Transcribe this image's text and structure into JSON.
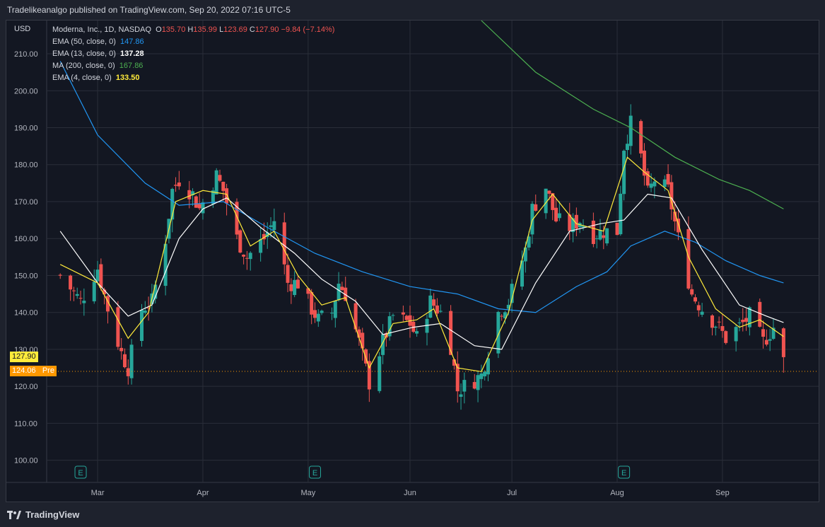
{
  "header": {
    "published_by": "Tradelikeanalgo published on TradingView.com, Sep 20, 2022 07:16 UTC-5"
  },
  "footer": {
    "brand": "TradingView"
  },
  "legend": {
    "symbol": "Moderna, Inc., 1D, NASDAQ",
    "ohlc": {
      "o_label": "O",
      "o": "135.70",
      "h_label": "H",
      "h": "135.99",
      "l_label": "L",
      "l": "123.69",
      "c_label": "C",
      "c": "127.90",
      "change": "−9.84 (−7.14%)"
    },
    "indicators": [
      {
        "label": "EMA (50, close, 0)",
        "value": "147.86",
        "color": "#2196f3"
      },
      {
        "label": "EMA (13, close, 0)",
        "value": "137.28",
        "color": "#ffffff"
      },
      {
        "label": "MA (200, close, 0)",
        "value": "167.86",
        "color": "#4caf50"
      },
      {
        "label": "EMA (4, close, 0)",
        "value": "133.50",
        "color": "#ffeb3b"
      }
    ]
  },
  "price_tags": {
    "last": {
      "value": "127.90",
      "color": "#ffeb3b"
    },
    "pre": {
      "value": "124.06",
      "label": "Pre",
      "color": "#ff9800"
    }
  },
  "chart_data": {
    "type": "candlestick",
    "currency": "USD",
    "ylim": [
      94,
      219
    ],
    "y_ticks": [
      "100.00",
      "110.00",
      "120.00",
      "130.00",
      "140.00",
      "150.00",
      "160.00",
      "170.00",
      "180.00",
      "190.00",
      "200.00",
      "210.00"
    ],
    "x_ticks": [
      "Mar",
      "Apr",
      "May",
      "Jun",
      "Jul",
      "Aug",
      "Sep"
    ],
    "earnings_marker_label": "E",
    "earnings_markers": [
      "2022-02-24",
      "2022-05-04",
      "2022-08-03"
    ],
    "colors": {
      "up": "#26a69a",
      "down": "#ef5350",
      "ema50": "#2196f3",
      "ema13": "#ffffff",
      "ma200": "#4caf50",
      "ema4": "#ffeb3b"
    },
    "close_path": [
      [
        "2022-02-18",
        150
      ],
      [
        "2022-02-24",
        143
      ],
      [
        "2022-03-01",
        152
      ],
      [
        "2022-03-04",
        141
      ],
      [
        "2022-03-08",
        129
      ],
      [
        "2022-03-10",
        125
      ],
      [
        "2022-03-14",
        141
      ],
      [
        "2022-03-17",
        143
      ],
      [
        "2022-03-21",
        160
      ],
      [
        "2022-03-23",
        173
      ],
      [
        "2022-03-25",
        176
      ],
      [
        "2022-03-29",
        172
      ],
      [
        "2022-03-31",
        168
      ],
      [
        "2022-04-05",
        177
      ],
      [
        "2022-04-07",
        173
      ],
      [
        "2022-04-11",
        160
      ],
      [
        "2022-04-14",
        155
      ],
      [
        "2022-04-19",
        160
      ],
      [
        "2022-04-22",
        165
      ],
      [
        "2022-04-26",
        148
      ],
      [
        "2022-04-29",
        148
      ],
      [
        "2022-05-03",
        141
      ],
      [
        "2022-05-05",
        138
      ],
      [
        "2022-05-09",
        140
      ],
      [
        "2022-05-11",
        148
      ],
      [
        "2022-05-13",
        145
      ],
      [
        "2022-05-17",
        132
      ],
      [
        "2022-05-20",
        121
      ],
      [
        "2022-05-24",
        132
      ],
      [
        "2022-05-27",
        139
      ],
      [
        "2022-06-01",
        137
      ],
      [
        "2022-06-03",
        133
      ],
      [
        "2022-06-07",
        143
      ],
      [
        "2022-06-10",
        140
      ],
      [
        "2022-06-13",
        131
      ],
      [
        "2022-06-15",
        119
      ],
      [
        "2022-06-17",
        120
      ],
      [
        "2022-06-22",
        123
      ],
      [
        "2022-06-27",
        140
      ],
      [
        "2022-06-30",
        143
      ],
      [
        "2022-07-05",
        157
      ],
      [
        "2022-07-07",
        168
      ],
      [
        "2022-07-11",
        174
      ],
      [
        "2022-07-14",
        165
      ],
      [
        "2022-07-18",
        163
      ],
      [
        "2022-07-21",
        165
      ],
      [
        "2022-07-25",
        161
      ],
      [
        "2022-07-28",
        162
      ],
      [
        "2022-08-01",
        162
      ],
      [
        "2022-08-03",
        185
      ],
      [
        "2022-08-05",
        191
      ],
      [
        "2022-08-08",
        182
      ],
      [
        "2022-08-10",
        172
      ],
      [
        "2022-08-12",
        176
      ],
      [
        "2022-08-16",
        173
      ],
      [
        "2022-08-19",
        160
      ],
      [
        "2022-08-23",
        145
      ],
      [
        "2022-08-26",
        141
      ],
      [
        "2022-08-30",
        137
      ],
      [
        "2022-09-02",
        133
      ],
      [
        "2022-09-07",
        137
      ],
      [
        "2022-09-09",
        139
      ],
      [
        "2022-09-13",
        132
      ],
      [
        "2022-09-16",
        136
      ],
      [
        "2022-09-19",
        127.9
      ]
    ],
    "ema50_path": [
      [
        "2022-02-18",
        208
      ],
      [
        "2022-03-01",
        188
      ],
      [
        "2022-03-15",
        175
      ],
      [
        "2022-03-25",
        169
      ],
      [
        "2022-04-07",
        170
      ],
      [
        "2022-04-20",
        163
      ],
      [
        "2022-05-04",
        156
      ],
      [
        "2022-05-18",
        151
      ],
      [
        "2022-06-01",
        147
      ],
      [
        "2022-06-15",
        145
      ],
      [
        "2022-06-27",
        141
      ],
      [
        "2022-07-08",
        140
      ],
      [
        "2022-07-20",
        147
      ],
      [
        "2022-07-29",
        151
      ],
      [
        "2022-08-05",
        158
      ],
      [
        "2022-08-15",
        162
      ],
      [
        "2022-08-24",
        159
      ],
      [
        "2022-09-02",
        154
      ],
      [
        "2022-09-12",
        150
      ],
      [
        "2022-09-19",
        148
      ]
    ],
    "ema13_path": [
      [
        "2022-02-18",
        162
      ],
      [
        "2022-03-01",
        148
      ],
      [
        "2022-03-10",
        139
      ],
      [
        "2022-03-17",
        142
      ],
      [
        "2022-03-25",
        160
      ],
      [
        "2022-04-01",
        168
      ],
      [
        "2022-04-08",
        171
      ],
      [
        "2022-04-18",
        163
      ],
      [
        "2022-04-28",
        156
      ],
      [
        "2022-05-06",
        149
      ],
      [
        "2022-05-16",
        143
      ],
      [
        "2022-05-24",
        134
      ],
      [
        "2022-06-02",
        136
      ],
      [
        "2022-06-10",
        137
      ],
      [
        "2022-06-20",
        131
      ],
      [
        "2022-06-28",
        130
      ],
      [
        "2022-07-08",
        148
      ],
      [
        "2022-07-18",
        162
      ],
      [
        "2022-07-27",
        164
      ],
      [
        "2022-08-03",
        165
      ],
      [
        "2022-08-10",
        172
      ],
      [
        "2022-08-17",
        171
      ],
      [
        "2022-08-26",
        157
      ],
      [
        "2022-09-06",
        142
      ],
      [
        "2022-09-14",
        139
      ],
      [
        "2022-09-19",
        137.28
      ]
    ],
    "ma200_path": [
      [
        "2022-06-22",
        220
      ],
      [
        "2022-07-08",
        205
      ],
      [
        "2022-07-25",
        195
      ],
      [
        "2022-08-05",
        190
      ],
      [
        "2022-08-18",
        182
      ],
      [
        "2022-08-31",
        176
      ],
      [
        "2022-09-09",
        173
      ],
      [
        "2022-09-19",
        168
      ]
    ],
    "ema4_path": [
      [
        "2022-02-18",
        153
      ],
      [
        "2022-03-01",
        148
      ],
      [
        "2022-03-10",
        133
      ],
      [
        "2022-03-16",
        140
      ],
      [
        "2022-03-24",
        170
      ],
      [
        "2022-04-01",
        173
      ],
      [
        "2022-04-08",
        172
      ],
      [
        "2022-04-15",
        158
      ],
      [
        "2022-04-22",
        162
      ],
      [
        "2022-04-29",
        150
      ],
      [
        "2022-05-06",
        142
      ],
      [
        "2022-05-13",
        144
      ],
      [
        "2022-05-20",
        125
      ],
      [
        "2022-05-27",
        137
      ],
      [
        "2022-06-03",
        138
      ],
      [
        "2022-06-08",
        141
      ],
      [
        "2022-06-15",
        125
      ],
      [
        "2022-06-22",
        124
      ],
      [
        "2022-06-30",
        140
      ],
      [
        "2022-07-07",
        165
      ],
      [
        "2022-07-13",
        172
      ],
      [
        "2022-07-20",
        164
      ],
      [
        "2022-07-28",
        162
      ],
      [
        "2022-08-04",
        182
      ],
      [
        "2022-08-09",
        178
      ],
      [
        "2022-08-16",
        173
      ],
      [
        "2022-08-22",
        155
      ],
      [
        "2022-08-30",
        141
      ],
      [
        "2022-09-06",
        136
      ],
      [
        "2022-09-12",
        138
      ],
      [
        "2022-09-19",
        133.5
      ]
    ]
  }
}
